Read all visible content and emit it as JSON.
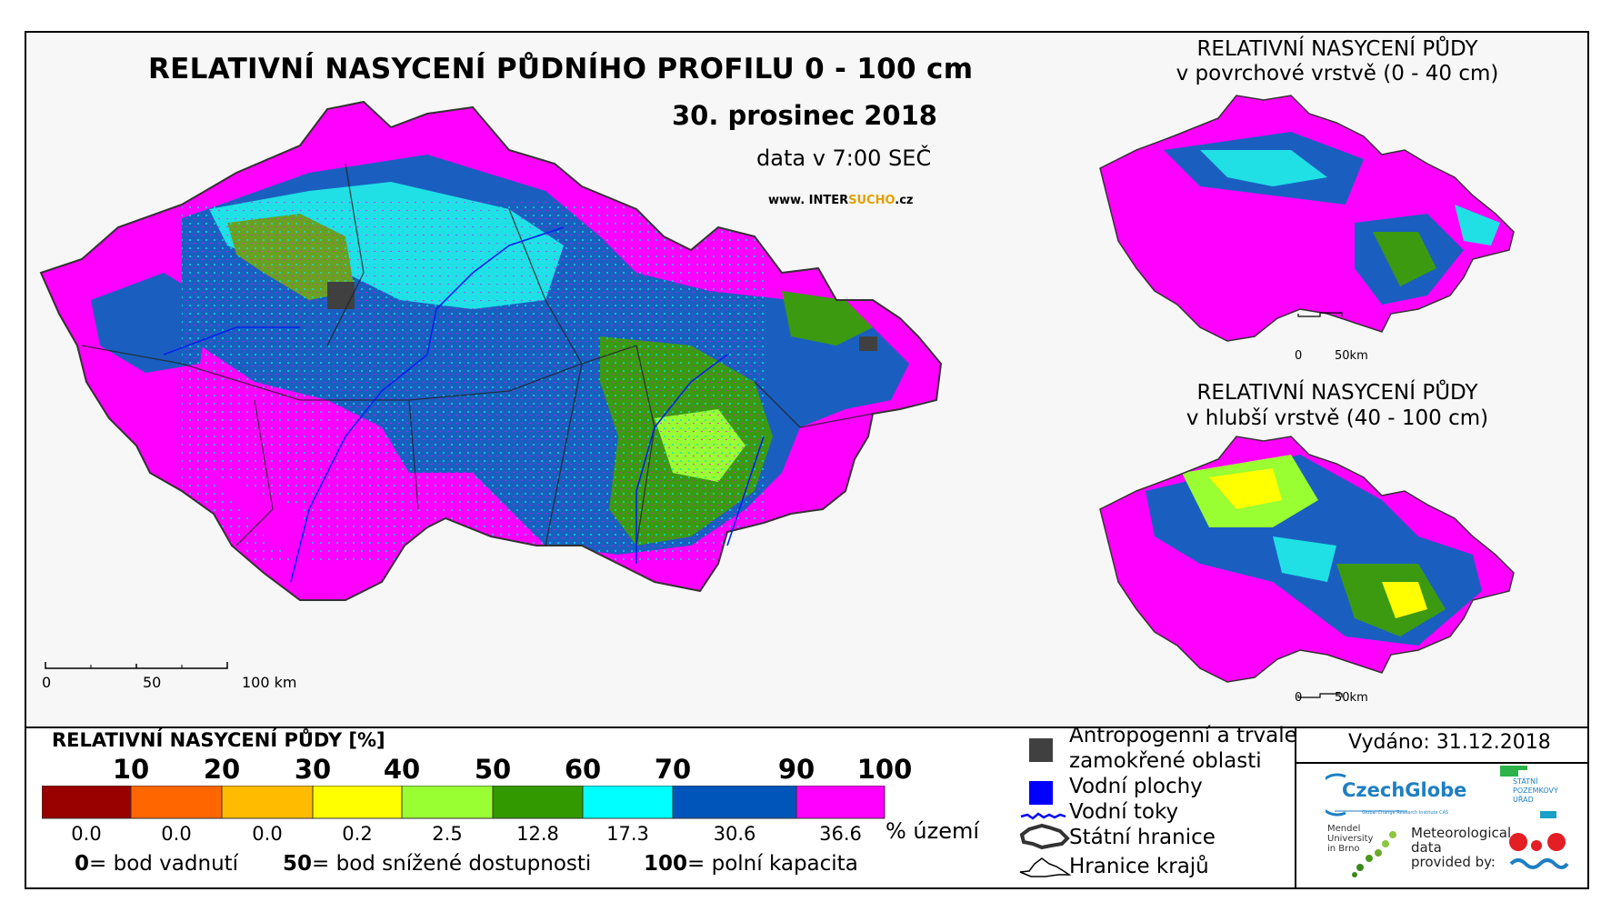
{
  "title": "RELATIVNÍ NASYCENÍ PŮDNÍHO PROFILU 0 - 100 cm",
  "date": "30. prosinec 2018",
  "time": "data v 7:00 SEČ",
  "website": {
    "prefix": "www. INTER",
    "highlight": "SUCHO",
    "suffix": ".cz"
  },
  "inset_top": {
    "line1": "RELATIVNÍ NASYCENÍ PŮDY",
    "line2": "v povrchové vrstvě (0 - 40 cm)",
    "scale_labels": [
      "0",
      "50km"
    ]
  },
  "inset_bottom": {
    "line1": "RELATIVNÍ NASYCENÍ PŮDY",
    "line2": "v hlubší vrstvě (40 - 100 cm)",
    "scale_labels": [
      "0",
      "50km"
    ]
  },
  "main_scale": {
    "labels": [
      "0",
      "50",
      "100 km"
    ]
  },
  "legend": {
    "title": "RELATIVNÍ NASYCENÍ PŮDY [%]",
    "ticks": [
      "10",
      "20",
      "30",
      "40",
      "50",
      "60",
      "70",
      "90",
      "100"
    ],
    "class_colors": [
      "#990000",
      "#ff6600",
      "#ffbb00",
      "#ffff00",
      "#99ff33",
      "#339900",
      "#00ffff",
      "#0055bb",
      "#ff00ff"
    ],
    "percentages": [
      "0.0",
      "0.0",
      "0.0",
      "0.2",
      "2.5",
      "12.8",
      "17.3",
      "30.6",
      "36.6"
    ],
    "unit": "% území",
    "notes": [
      {
        "value": "0",
        "text": "= bod vadnutí"
      },
      {
        "value": "50",
        "text": "= bod snížené dostupnosti"
      },
      {
        "value": "100",
        "text": "= polní kapacita"
      }
    ]
  },
  "symbols": [
    {
      "icon": "gray-square-icon",
      "color": "#404040",
      "label": "Antropogenní a trvale"
    },
    {
      "icon": "",
      "color": "",
      "label": "zamokřené oblasti"
    },
    {
      "icon": "blue-square-icon",
      "color": "#0000ff",
      "label": "Vodní plochy"
    },
    {
      "icon": "river-line-icon",
      "color": "#0000ff",
      "label": "Vodní toky"
    },
    {
      "icon": "state-border-icon",
      "color": "#333333",
      "label": "Státní hranice"
    },
    {
      "icon": "region-border-icon",
      "color": "#000000",
      "label": "Hranice krajů"
    }
  ],
  "issued": "Vydáno: 31.12.2018",
  "logos": {
    "czechglobe": "CzechGlobe",
    "czechglobe_sub": "Global Change Research Institute CAS",
    "spu": [
      "STÁTNÍ",
      "POZEMKOVÝ",
      "ÚŘAD"
    ],
    "mendel": [
      "Mendel",
      "University",
      "in Brno"
    ],
    "met": [
      "Meteorological",
      "data",
      "provided by:"
    ]
  }
}
